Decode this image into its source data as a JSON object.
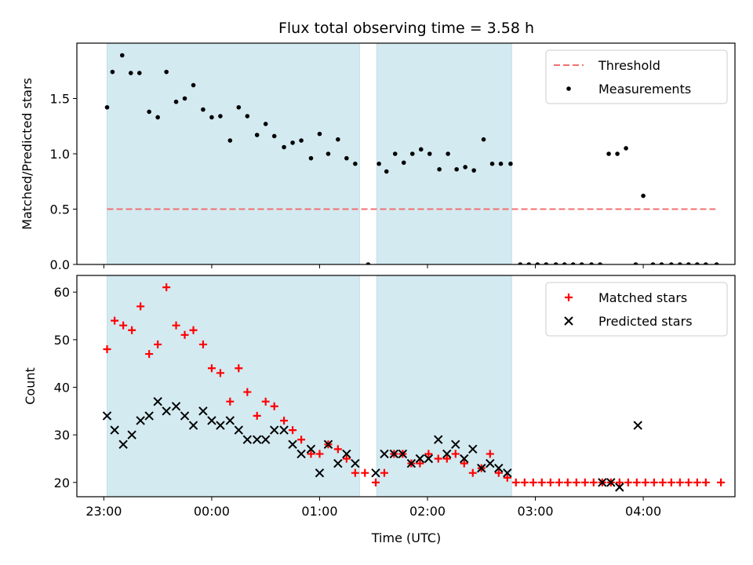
{
  "chart_data": {
    "title": "Flux total observing time = 3.58 h",
    "xlabel": "Time (UTC)",
    "x_unit": "hours after 23:00 UTC",
    "xlim": [
      -0.25,
      5.85
    ],
    "x_ticks": [
      {
        "value": 0,
        "label": "23:00"
      },
      {
        "value": 1,
        "label": "00:00"
      },
      {
        "value": 2,
        "label": "01:00"
      },
      {
        "value": 3,
        "label": "02:00"
      },
      {
        "value": 4,
        "label": "03:00"
      },
      {
        "value": 5,
        "label": "04:00"
      }
    ],
    "shaded_intervals": [
      [
        0.03,
        2.37
      ],
      [
        2.53,
        3.78
      ]
    ],
    "shade_color": "#d3eaf1",
    "panels": [
      {
        "type": "scatter",
        "ylabel": "Matched/Predicted stars",
        "ylim": [
          0,
          2.0
        ],
        "y_ticks": [
          0.0,
          0.5,
          1.0,
          1.5
        ],
        "legend": "top-right",
        "threshold": {
          "name": "Threshold",
          "value": 0.5,
          "x_range": [
            0.03,
            5.67
          ],
          "color": "#f07070"
        },
        "series": [
          {
            "name": "Measurements",
            "marker": "dot",
            "color": "#000000",
            "points": [
              [
                0.03,
                1.42
              ],
              [
                0.08,
                1.74
              ],
              [
                0.17,
                1.89
              ],
              [
                0.25,
                1.73
              ],
              [
                0.33,
                1.73
              ],
              [
                0.42,
                1.38
              ],
              [
                0.5,
                1.33
              ],
              [
                0.58,
                1.74
              ],
              [
                0.67,
                1.47
              ],
              [
                0.75,
                1.5
              ],
              [
                0.83,
                1.62
              ],
              [
                0.92,
                1.4
              ],
              [
                1.0,
                1.33
              ],
              [
                1.08,
                1.34
              ],
              [
                1.17,
                1.12
              ],
              [
                1.25,
                1.42
              ],
              [
                1.33,
                1.34
              ],
              [
                1.42,
                1.17
              ],
              [
                1.5,
                1.27
              ],
              [
                1.58,
                1.16
              ],
              [
                1.67,
                1.06
              ],
              [
                1.75,
                1.1
              ],
              [
                1.83,
                1.12
              ],
              [
                1.92,
                0.96
              ],
              [
                2.0,
                1.18
              ],
              [
                2.08,
                1.0
              ],
              [
                2.17,
                1.13
              ],
              [
                2.25,
                0.96
              ],
              [
                2.33,
                0.91
              ],
              [
                2.45,
                0.0
              ],
              [
                2.55,
                0.91
              ],
              [
                2.62,
                0.84
              ],
              [
                2.7,
                1.0
              ],
              [
                2.78,
                0.92
              ],
              [
                2.86,
                1.0
              ],
              [
                2.94,
                1.04
              ],
              [
                3.02,
                1.0
              ],
              [
                3.11,
                0.86
              ],
              [
                3.19,
                1.0
              ],
              [
                3.27,
                0.86
              ],
              [
                3.35,
                0.88
              ],
              [
                3.43,
                0.85
              ],
              [
                3.52,
                1.13
              ],
              [
                3.6,
                0.91
              ],
              [
                3.68,
                0.91
              ],
              [
                3.77,
                0.91
              ],
              [
                3.86,
                0.0
              ],
              [
                3.94,
                0.0
              ],
              [
                4.02,
                0.0
              ],
              [
                4.1,
                0.0
              ],
              [
                4.19,
                0.0
              ],
              [
                4.27,
                0.0
              ],
              [
                4.35,
                0.0
              ],
              [
                4.43,
                0.0
              ],
              [
                4.52,
                0.0
              ],
              [
                4.6,
                0.0
              ],
              [
                4.68,
                1.0
              ],
              [
                4.76,
                1.0
              ],
              [
                4.84,
                1.05
              ],
              [
                4.93,
                0.0
              ],
              [
                5.0,
                0.62
              ],
              [
                5.09,
                0.0
              ],
              [
                5.17,
                0.0
              ],
              [
                5.26,
                0.0
              ],
              [
                5.34,
                0.0
              ],
              [
                5.42,
                0.0
              ],
              [
                5.5,
                0.0
              ],
              [
                5.58,
                0.0
              ],
              [
                5.68,
                0.0
              ]
            ]
          }
        ]
      },
      {
        "type": "scatter",
        "ylabel": "Count",
        "ylim": [
          17,
          63.5
        ],
        "y_ticks": [
          20,
          30,
          40,
          50,
          60
        ],
        "legend": "top-right",
        "series": [
          {
            "name": "Matched stars",
            "marker": "plus",
            "color": "#ff0000",
            "points": [
              [
                0.03,
                48
              ],
              [
                0.1,
                54
              ],
              [
                0.18,
                53
              ],
              [
                0.26,
                52
              ],
              [
                0.34,
                57
              ],
              [
                0.42,
                47
              ],
              [
                0.5,
                49
              ],
              [
                0.58,
                61
              ],
              [
                0.67,
                53
              ],
              [
                0.75,
                51
              ],
              [
                0.83,
                52
              ],
              [
                0.92,
                49
              ],
              [
                1.0,
                44
              ],
              [
                1.08,
                43
              ],
              [
                1.17,
                37
              ],
              [
                1.25,
                44
              ],
              [
                1.33,
                39
              ],
              [
                1.42,
                34
              ],
              [
                1.5,
                37
              ],
              [
                1.58,
                36
              ],
              [
                1.67,
                33
              ],
              [
                1.75,
                31
              ],
              [
                1.83,
                29
              ],
              [
                1.92,
                26
              ],
              [
                2.0,
                26
              ],
              [
                2.08,
                28
              ],
              [
                2.17,
                27
              ],
              [
                2.25,
                25
              ],
              [
                2.33,
                22
              ],
              [
                2.42,
                22
              ],
              [
                2.52,
                20
              ],
              [
                2.6,
                22
              ],
              [
                2.69,
                26
              ],
              [
                2.77,
                26
              ],
              [
                2.85,
                24
              ],
              [
                2.93,
                24
              ],
              [
                3.01,
                26
              ],
              [
                3.1,
                25
              ],
              [
                3.18,
                25
              ],
              [
                3.26,
                26
              ],
              [
                3.34,
                24
              ],
              [
                3.42,
                22
              ],
              [
                3.5,
                23
              ],
              [
                3.58,
                26
              ],
              [
                3.66,
                22
              ],
              [
                3.74,
                21
              ],
              [
                3.82,
                20
              ],
              [
                3.9,
                20
              ],
              [
                3.98,
                20
              ],
              [
                4.06,
                20
              ],
              [
                4.14,
                20
              ],
              [
                4.22,
                20
              ],
              [
                4.3,
                20
              ],
              [
                4.38,
                20
              ],
              [
                4.46,
                20
              ],
              [
                4.54,
                20
              ],
              [
                4.62,
                20
              ],
              [
                4.7,
                20
              ],
              [
                4.78,
                20
              ],
              [
                4.86,
                20
              ],
              [
                4.94,
                20
              ],
              [
                5.02,
                20
              ],
              [
                5.1,
                20
              ],
              [
                5.18,
                20
              ],
              [
                5.26,
                20
              ],
              [
                5.34,
                20
              ],
              [
                5.42,
                20
              ],
              [
                5.5,
                20
              ],
              [
                5.58,
                20
              ],
              [
                5.72,
                20
              ]
            ]
          },
          {
            "name": "Predicted stars",
            "marker": "x",
            "color": "#000000",
            "points": [
              [
                0.03,
                34
              ],
              [
                0.1,
                31
              ],
              [
                0.18,
                28
              ],
              [
                0.26,
                30
              ],
              [
                0.34,
                33
              ],
              [
                0.42,
                34
              ],
              [
                0.5,
                37
              ],
              [
                0.58,
                35
              ],
              [
                0.67,
                36
              ],
              [
                0.75,
                34
              ],
              [
                0.83,
                32
              ],
              [
                0.92,
                35
              ],
              [
                1.0,
                33
              ],
              [
                1.08,
                32
              ],
              [
                1.17,
                33
              ],
              [
                1.25,
                31
              ],
              [
                1.33,
                29
              ],
              [
                1.42,
                29
              ],
              [
                1.5,
                29
              ],
              [
                1.58,
                31
              ],
              [
                1.67,
                31
              ],
              [
                1.75,
                28
              ],
              [
                1.83,
                26
              ],
              [
                1.92,
                27
              ],
              [
                2.0,
                22
              ],
              [
                2.08,
                28
              ],
              [
                2.17,
                24
              ],
              [
                2.25,
                26
              ],
              [
                2.33,
                24
              ],
              [
                2.52,
                22
              ],
              [
                2.6,
                26
              ],
              [
                2.69,
                26
              ],
              [
                2.77,
                26
              ],
              [
                2.85,
                24
              ],
              [
                2.93,
                25
              ],
              [
                3.01,
                25
              ],
              [
                3.1,
                29
              ],
              [
                3.18,
                26
              ],
              [
                3.26,
                28
              ],
              [
                3.34,
                25
              ],
              [
                3.42,
                27
              ],
              [
                3.5,
                23
              ],
              [
                3.58,
                24
              ],
              [
                3.66,
                23
              ],
              [
                3.74,
                22
              ],
              [
                4.62,
                20
              ],
              [
                4.7,
                20
              ],
              [
                4.78,
                19
              ],
              [
                4.95,
                32
              ]
            ]
          }
        ]
      }
    ]
  }
}
